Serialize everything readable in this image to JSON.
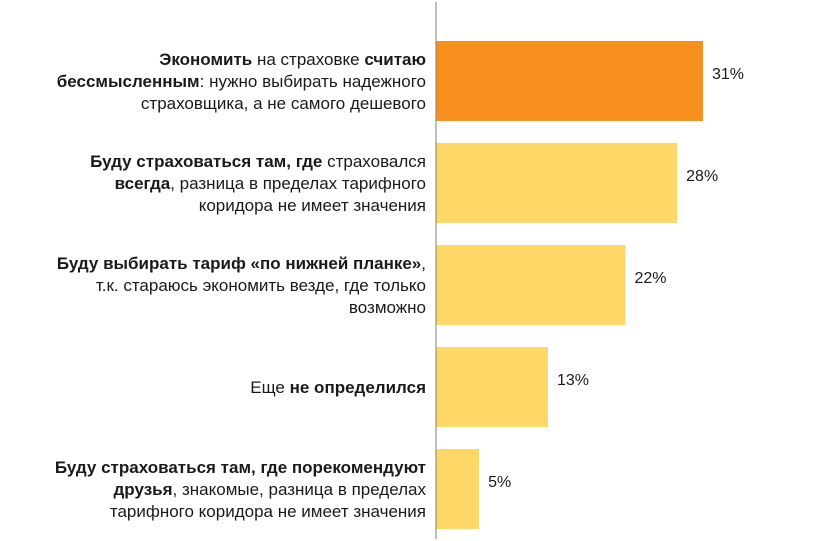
{
  "chart_data": {
    "type": "bar",
    "orientation": "horizontal",
    "categories": [
      "Экономить на страховке считаю бессмысленным: нужно выбирать надежного страховщика, а не самого дешевого",
      "Буду страховаться там, где страховался всегда, разница в пределах тарифного коридора не имеет значения",
      "Буду выбирать тариф «по нижней планке», т.к. стараюсь экономить везде, где только возможно",
      "Еще не определился",
      "Буду страховаться там, где порекомендуют друзья, знакомые, разница в пределах тарифного коридора не имеет значения"
    ],
    "label_lines": [
      [
        [
          [
            "Экономить",
            true
          ],
          [
            " на страховке ",
            false
          ],
          [
            "считаю",
            true
          ]
        ],
        [
          [
            "бессмысленным",
            true
          ],
          [
            ": нужно выбирать надежного",
            false
          ]
        ],
        [
          [
            "страховщика, а не самого дешевого",
            false
          ]
        ]
      ],
      [
        [
          [
            "Буду страховаться там, где",
            true
          ],
          [
            " страховался",
            false
          ]
        ],
        [
          [
            "всегда",
            true
          ],
          [
            ", разница в пределах тарифного",
            false
          ]
        ],
        [
          [
            "коридора не имеет значения",
            false
          ]
        ]
      ],
      [
        [
          [
            "Буду выбирать тариф «по нижней планке»",
            true
          ],
          [
            ",",
            false
          ]
        ],
        [
          [
            "т.к. стараюсь экономить везде, где только",
            false
          ]
        ],
        [
          [
            "возможно",
            false
          ]
        ]
      ],
      [
        [
          [
            "Еще ",
            false
          ],
          [
            "не определился",
            true
          ]
        ]
      ],
      [
        [
          [
            "Буду страховаться там, где порекомендуют",
            true
          ]
        ],
        [
          [
            "друзья",
            true
          ],
          [
            ", знакомые, разница в пределах",
            false
          ]
        ],
        [
          [
            "тарифного коридора не имеет значения",
            false
          ]
        ]
      ]
    ],
    "values": [
      31,
      28,
      22,
      13,
      5
    ],
    "value_labels": [
      "31%",
      "28%",
      "22%",
      "13%",
      "5%"
    ],
    "bar_colors": [
      "#f7901e",
      "#fdd866",
      "#fdd866",
      "#fdd866",
      "#fdd866"
    ],
    "axis_color": "#7f7f7f",
    "xlim": [
      0,
      40
    ],
    "grid": false,
    "legend": "none"
  }
}
